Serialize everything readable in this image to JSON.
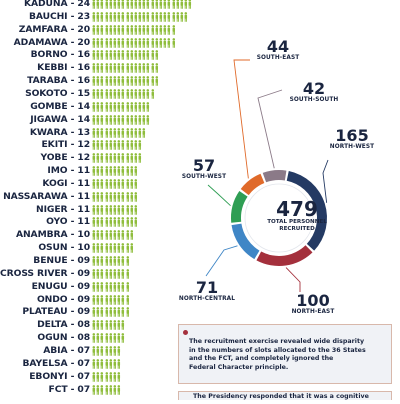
{
  "chart_data": [
    {
      "type": "bar",
      "categories": [
        "KADUNA",
        "BAUCHI",
        "ZAMFARA",
        "ADAMAWA",
        "BORNO",
        "KEBBI",
        "TARABA",
        "SOKOTO",
        "GOMBE",
        "JIGAWA",
        "KWARA",
        "EKITI",
        "YOBE",
        "IMO",
        "KOGI",
        "NASSARAWA",
        "NIGER",
        "OYO",
        "ANAMBRA",
        "OSUN",
        "BENUE",
        "CROSS RIVER",
        "ENUGU",
        "ONDO",
        "PLATEAU",
        "DELTA",
        "OGUN",
        "ABIA",
        "BAYELSA",
        "EBONYI",
        "FCT"
      ],
      "labels": [
        "KADUNA - 24",
        "BAUCHI - 23",
        "ZAMFARA - 20",
        "ADAMAWA - 20",
        "BORNO - 16",
        "KEBBI - 16",
        "TARABA - 16",
        "SOKOTO - 15",
        "GOMBE - 14",
        "JIGAWA - 14",
        "KWARA - 13",
        "EKITI - 12",
        "YOBE - 12",
        "IMO - 11",
        "KOGI - 11",
        "NASSARAWA - 11",
        "NIGER - 11",
        "OYO - 11",
        "ANAMBRA - 10",
        "OSUN - 10",
        "BENUE - 09",
        "CROSS RIVER - 09",
        "ENUGU - 09",
        "ONDO - 09",
        "PLATEAU - 09",
        "DELTA - 08",
        "OGUN - 08",
        "ABIA - 07",
        "BAYELSA - 07",
        "EBONYI - 07",
        "FCT - 07"
      ],
      "values": [
        24,
        23,
        20,
        20,
        16,
        16,
        16,
        15,
        14,
        14,
        13,
        12,
        12,
        11,
        11,
        11,
        11,
        11,
        10,
        10,
        9,
        9,
        9,
        9,
        9,
        8,
        8,
        7,
        7,
        7,
        7
      ],
      "color": "#8fbd3c"
    },
    {
      "type": "pie",
      "center_total": "479",
      "center_caption_1": "TOTAL PERSONNEL",
      "center_caption_2": "RECRUITED",
      "slices": [
        {
          "name": "NORTH-WEST",
          "value": 165,
          "label": "165",
          "color": "#243a63"
        },
        {
          "name": "NORTH-EAST",
          "value": 100,
          "label": "100",
          "color": "#a4303c"
        },
        {
          "name": "NORTH-CENTRAL",
          "value": 71,
          "label": "71",
          "color": "#3f86c6"
        },
        {
          "name": "SOUTH-WEST",
          "value": 57,
          "label": "57",
          "color": "#2f9e54"
        },
        {
          "name": "SOUTH-EAST",
          "value": 44,
          "label": "44",
          "color": "#e06a2a"
        },
        {
          "name": "SOUTH-SOUTH",
          "value": 42,
          "label": "42",
          "color": "#8b7a88"
        }
      ]
    }
  ],
  "note": {
    "lines": [
      "The recruitment exercise revealed wide disparity",
      "in the numbers of slots allocated to the 36 States",
      "and the FCT, and completely ignored the",
      "Federal Character principle."
    ],
    "next_text": "The Presidency responded that it was a cognitive"
  },
  "colors": {
    "text": "#1a2540",
    "figure": "#8fbd3c",
    "note_border": "#d8b8ab",
    "note_bg": "#f0f2f6"
  }
}
